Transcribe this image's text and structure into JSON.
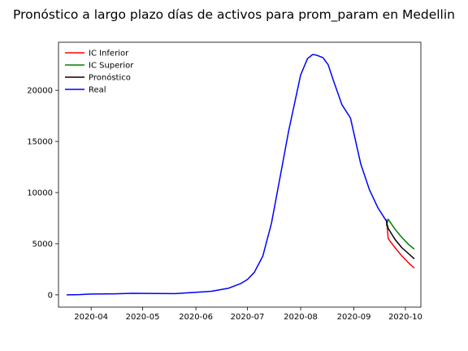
{
  "chart_data": {
    "type": "line",
    "title": "Pronóstico a largo plazo días de activos para prom_param en Medellin",
    "xlabel": "",
    "ylabel": "",
    "x_axis_type": "date",
    "xlim": [
      "2020-03-13",
      "2020-10-10"
    ],
    "ylim": [
      -1200,
      24700
    ],
    "x_ticks": [
      "2020-04-01",
      "2020-05-01",
      "2020-06-01",
      "2020-07-01",
      "2020-08-01",
      "2020-09-01",
      "2020-10-01"
    ],
    "x_tick_labels": [
      "2020-04",
      "2020-05",
      "2020-06",
      "2020-07",
      "2020-08",
      "2020-09",
      "2020-10"
    ],
    "y_ticks": [
      0,
      5000,
      10000,
      15000,
      20000
    ],
    "y_tick_labels": [
      "0",
      "5000",
      "10000",
      "15000",
      "20000"
    ],
    "grid": false,
    "legend_position": "top-left",
    "series": [
      {
        "name": "IC Inferior",
        "color": "#ff0000",
        "x": [
          "2020-09-20",
          "2020-09-21",
          "2020-09-25",
          "2020-09-29",
          "2020-10-03",
          "2020-10-06"
        ],
        "y": [
          7350,
          5500,
          4600,
          3800,
          3100,
          2650
        ]
      },
      {
        "name": "IC Superior",
        "color": "#008000",
        "x": [
          "2020-09-20",
          "2020-09-21",
          "2020-09-25",
          "2020-09-29",
          "2020-10-03",
          "2020-10-06"
        ],
        "y": [
          6800,
          7400,
          6400,
          5600,
          4900,
          4500
        ]
      },
      {
        "name": "Pronóstico",
        "color": "#000000",
        "x": [
          "2020-09-20",
          "2020-09-21",
          "2020-09-25",
          "2020-09-29",
          "2020-10-03",
          "2020-10-06"
        ],
        "y": [
          7100,
          6500,
          5400,
          4600,
          4000,
          3550
        ]
      },
      {
        "name": "Real",
        "color": "#0000ff",
        "x": [
          "2020-03-18",
          "2020-03-25",
          "2020-04-01",
          "2020-04-15",
          "2020-04-25",
          "2020-05-10",
          "2020-05-20",
          "2020-06-01",
          "2020-06-10",
          "2020-06-20",
          "2020-06-27",
          "2020-07-01",
          "2020-07-05",
          "2020-07-10",
          "2020-07-15",
          "2020-07-20",
          "2020-07-25",
          "2020-08-01",
          "2020-08-05",
          "2020-08-08",
          "2020-08-10",
          "2020-08-14",
          "2020-08-17",
          "2020-08-20",
          "2020-08-25",
          "2020-08-30",
          "2020-09-05",
          "2020-09-10",
          "2020-09-15",
          "2020-09-20"
        ],
        "y": [
          0,
          20,
          80,
          100,
          150,
          130,
          120,
          250,
          350,
          650,
          1100,
          1500,
          2200,
          3800,
          7000,
          11500,
          16000,
          21500,
          23100,
          23500,
          23450,
          23200,
          22500,
          21000,
          18600,
          17300,
          12800,
          10300,
          8500,
          7200
        ]
      }
    ]
  }
}
